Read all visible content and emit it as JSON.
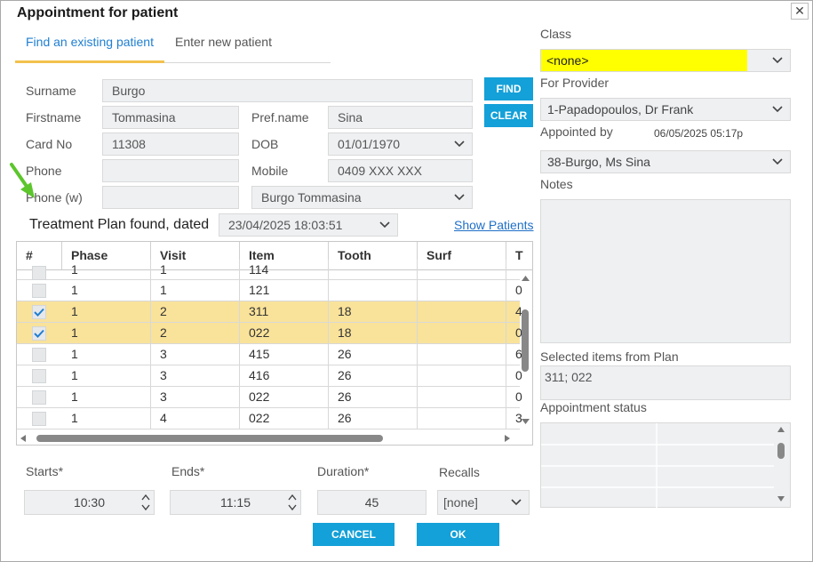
{
  "window": {
    "title": "Appointment for patient",
    "close_glyph": "✕"
  },
  "tabs": [
    {
      "label": "Find an existing patient",
      "active": true
    },
    {
      "label": "Enter new patient",
      "active": false
    }
  ],
  "patient": {
    "surname_label": "Surname",
    "surname": "Burgo",
    "firstname_label": "Firstname",
    "firstname": "Tommasina",
    "prefname_label": "Pref.name",
    "prefname": "Sina",
    "cardno_label": "Card No",
    "cardno": "11308",
    "dob_label": "DOB",
    "dob": "01/01/1970",
    "phone_label": "Phone",
    "phone": "",
    "mobile_label": "Mobile",
    "mobile": "0409 XXX XXX",
    "phonew_label": "Phone (w)",
    "phonew": "",
    "patient_select": "Burgo Tommasina"
  },
  "buttons": {
    "find": "FIND",
    "clear": "CLEAR",
    "cancel": "CANCEL",
    "ok": "OK"
  },
  "treatment_plan": {
    "label": "Treatment Plan found, dated",
    "date": "23/04/2025 18:03:51",
    "show_patients": "Show Patients"
  },
  "grid": {
    "columns": [
      "#",
      "Phase",
      "Visit",
      "Item",
      "Tooth",
      "Surf",
      "T"
    ],
    "partial_row": {
      "phase": "1",
      "visit": "1",
      "item": "114",
      "tooth": "",
      "surf": "",
      "t": ""
    },
    "rows": [
      {
        "checked": false,
        "selected": false,
        "phase": "1",
        "visit": "1",
        "item": "121",
        "tooth": "",
        "surf": "",
        "t": "0"
      },
      {
        "checked": true,
        "selected": true,
        "phase": "1",
        "visit": "2",
        "item": "311",
        "tooth": "18",
        "surf": "",
        "t": "4"
      },
      {
        "checked": true,
        "selected": true,
        "phase": "1",
        "visit": "2",
        "item": "022",
        "tooth": "18",
        "surf": "",
        "t": "0"
      },
      {
        "checked": false,
        "selected": false,
        "phase": "1",
        "visit": "3",
        "item": "415",
        "tooth": "26",
        "surf": "",
        "t": "6"
      },
      {
        "checked": false,
        "selected": false,
        "phase": "1",
        "visit": "3",
        "item": "416",
        "tooth": "26",
        "surf": "",
        "t": "0"
      },
      {
        "checked": false,
        "selected": false,
        "phase": "1",
        "visit": "3",
        "item": "022",
        "tooth": "26",
        "surf": "",
        "t": "0"
      },
      {
        "checked": false,
        "selected": false,
        "phase": "1",
        "visit": "4",
        "item": "022",
        "tooth": "26",
        "surf": "",
        "t": "3"
      }
    ]
  },
  "timing": {
    "starts_label": "Starts*",
    "starts": "10:30",
    "ends_label": "Ends*",
    "ends": "11:15",
    "duration_label": "Duration*",
    "duration": "45",
    "recalls_label": "Recalls",
    "recalls": "[none]"
  },
  "right": {
    "class_label": "Class",
    "class_value": "<none>",
    "provider_label": "For Provider",
    "provider": "1-Papadopoulos, Dr Frank",
    "appointed_label": "Appointed by",
    "appointed_time": "06/05/2025 05:17p",
    "appointed_by": "38-Burgo, Ms Sina",
    "notes_label": "Notes",
    "selected_label": "Selected items from Plan",
    "selected_items": "311; 022",
    "status_label": "Appointment status"
  },
  "colors": {
    "accent": "#14a0d8",
    "selected_row": "#f9e29a",
    "tab_underline": "#f2c24d",
    "class_highlight": "#ffff00",
    "annotation_arrow": "#5cc62c"
  }
}
